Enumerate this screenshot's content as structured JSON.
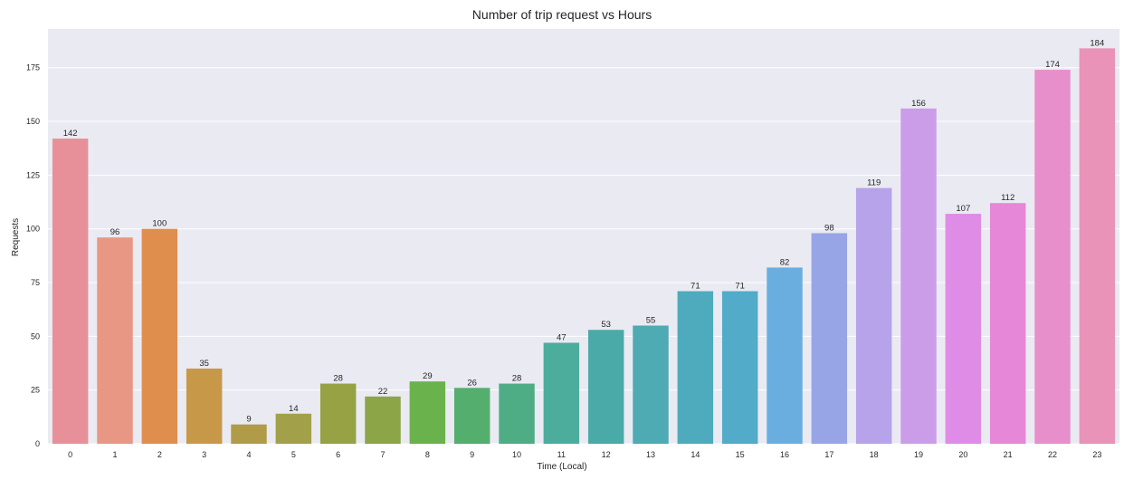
{
  "chart_data": {
    "type": "bar",
    "title": "Number of trip request vs Hours",
    "xlabel": "Time (Local)",
    "ylabel": "Requests",
    "categories": [
      "0",
      "1",
      "2",
      "3",
      "4",
      "5",
      "6",
      "7",
      "8",
      "9",
      "10",
      "11",
      "12",
      "13",
      "14",
      "15",
      "16",
      "17",
      "18",
      "19",
      "20",
      "21",
      "22",
      "23"
    ],
    "values": [
      142,
      96,
      100,
      35,
      9,
      14,
      28,
      22,
      29,
      26,
      28,
      47,
      53,
      55,
      71,
      71,
      82,
      98,
      119,
      156,
      107,
      112,
      174,
      184
    ],
    "yticks": [
      0,
      25,
      50,
      75,
      100,
      125,
      150,
      175
    ],
    "ylim": [
      0,
      193
    ],
    "grid": true,
    "colors": [
      "#e8909a",
      "#e89784",
      "#e08e4e",
      "#c89849",
      "#b09c48",
      "#a3a04a",
      "#96a244",
      "#8ba547",
      "#6ab24c",
      "#54ae6e",
      "#4fad86",
      "#4cad9c",
      "#4aaaa8",
      "#4eabb3",
      "#4eaabd",
      "#51abc9",
      "#6aaee0",
      "#97a5e6",
      "#b7a3ea",
      "#cb9de9",
      "#de8ce6",
      "#e687d8",
      "#e78fcb",
      "#e993b8"
    ],
    "background": "#eaeaf2"
  }
}
